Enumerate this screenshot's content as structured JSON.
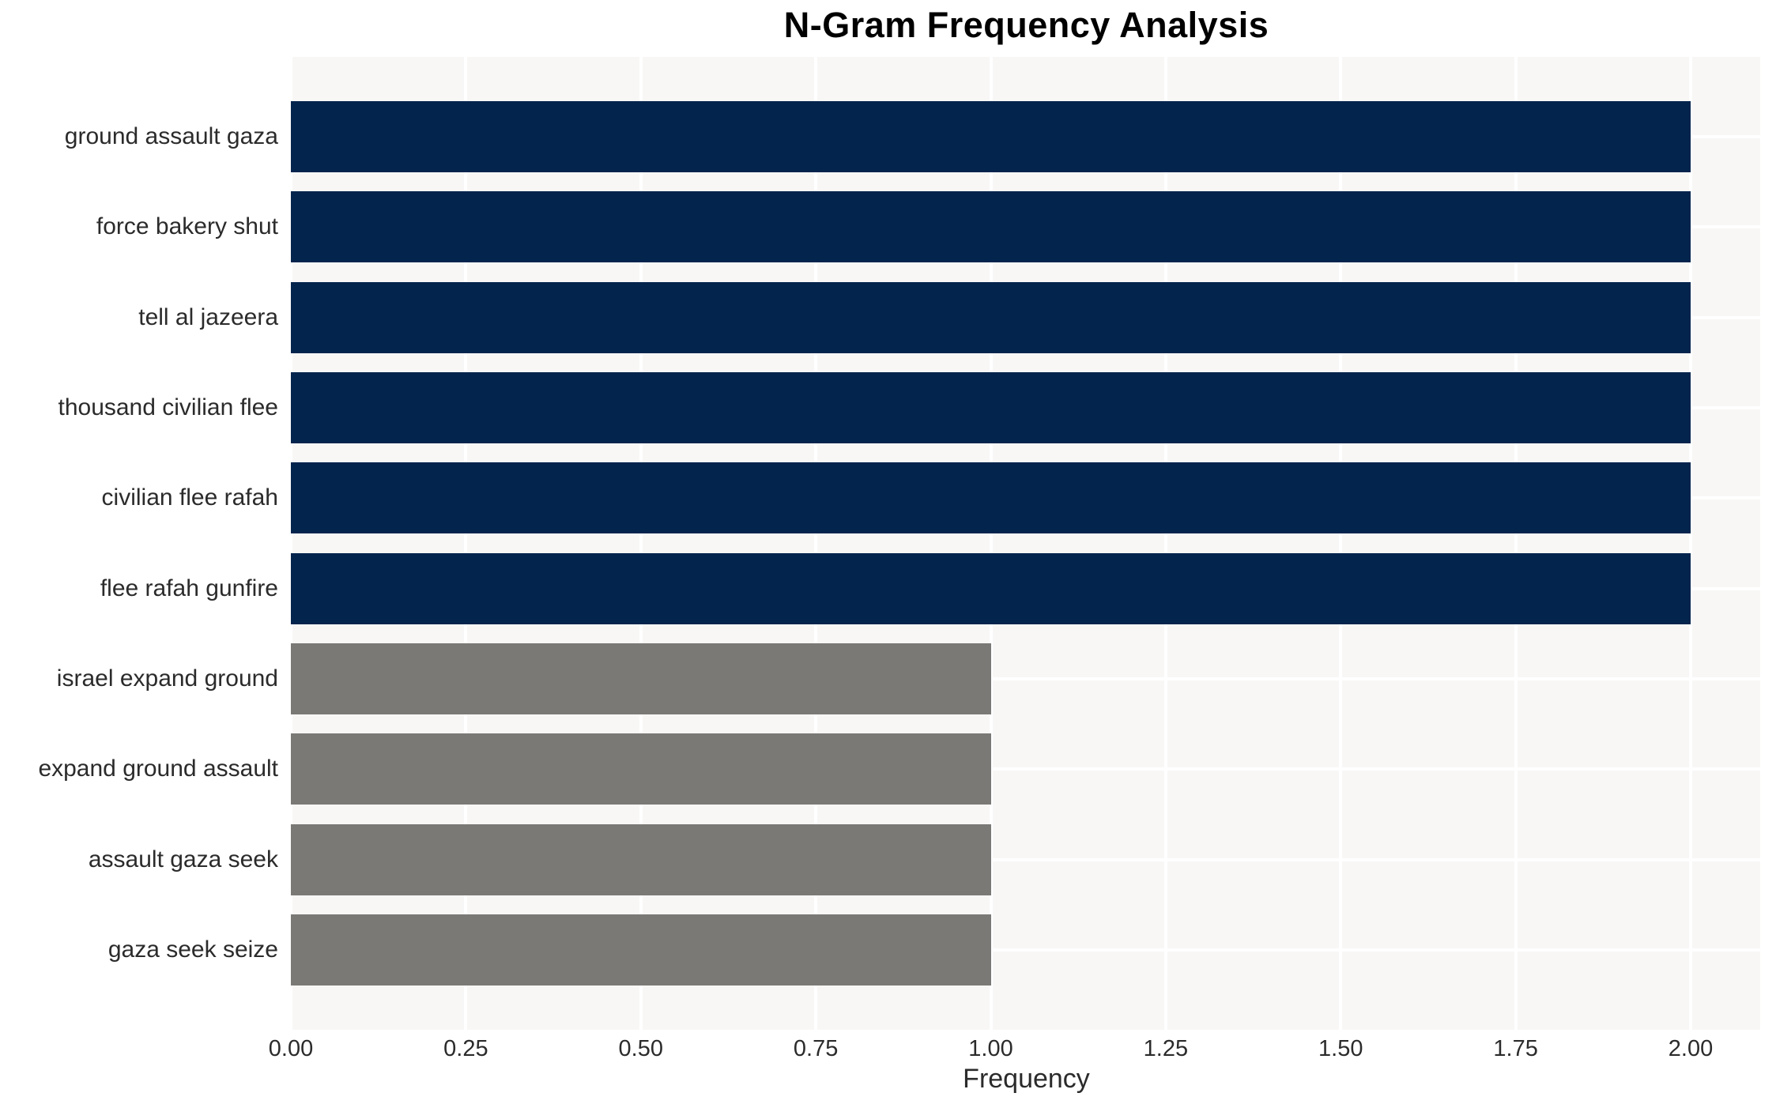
{
  "chart_data": {
    "type": "bar",
    "orientation": "horizontal",
    "title": "N-Gram Frequency Analysis",
    "xlabel": "Frequency",
    "ylabel": "",
    "categories": [
      "ground assault gaza",
      "force bakery shut",
      "tell al jazeera",
      "thousand civilian flee",
      "civilian flee rafah",
      "flee rafah gunfire",
      "israel expand ground",
      "expand ground assault",
      "assault gaza seek",
      "gaza seek seize"
    ],
    "values": [
      2,
      2,
      2,
      2,
      2,
      2,
      1,
      1,
      1,
      1
    ],
    "bar_colors": [
      "#03244d",
      "#03244d",
      "#03244d",
      "#03244d",
      "#03244d",
      "#03244d",
      "#7a7976",
      "#7a7976",
      "#7a7976",
      "#7a7976"
    ],
    "xlim": [
      0,
      2.1
    ],
    "xticks": [
      0,
      0.25,
      0.5,
      0.75,
      1.0,
      1.25,
      1.5,
      1.75,
      2.0
    ],
    "xtick_labels": [
      "0.00",
      "0.25",
      "0.50",
      "0.75",
      "1.00",
      "1.25",
      "1.50",
      "1.75",
      "2.00"
    ],
    "grid": true,
    "legend": false,
    "colors": {
      "bar_high": "#03244d",
      "bar_low": "#7a7976",
      "plot_background": "#f8f7f6",
      "gridline": "#ffffff",
      "title_text": "#000000",
      "label_text": "#2b2b2b"
    }
  }
}
